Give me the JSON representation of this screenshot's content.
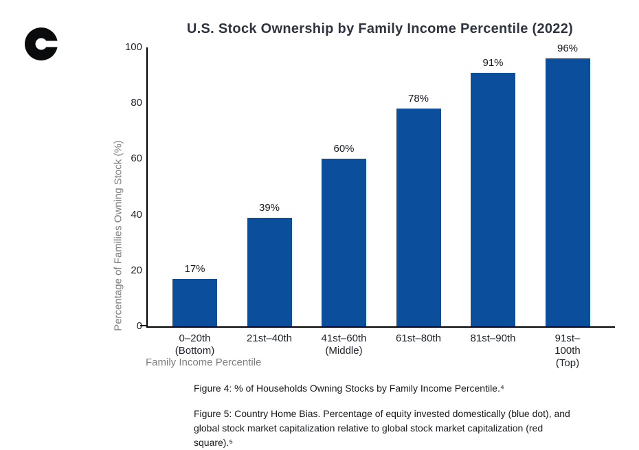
{
  "logo": {
    "name": "Coinbase",
    "color": "#0a0b0d"
  },
  "chart_data": {
    "type": "bar",
    "title": "U.S. Stock Ownership by Family Income Percentile (2022)",
    "categories": [
      "0–20th\n(Bottom)",
      "21st–40th",
      "41st–60th\n(Middle)",
      "61st–80th",
      "81st–90th",
      "91st–100th\n(Top)"
    ],
    "values": [
      17,
      39,
      60,
      78,
      91,
      96
    ],
    "value_labels": [
      "17%",
      "39%",
      "60%",
      "78%",
      "91%",
      "96%"
    ],
    "xlabel": "Family Income Percentile",
    "ylabel": "Percentage of Families Owning Stock (%)",
    "yticks": [
      0,
      20,
      40,
      60,
      80,
      100
    ],
    "ylim": [
      0,
      100
    ],
    "grid": false,
    "legend": "none",
    "bar_color": "#0b4e9c"
  },
  "captions": {
    "figure4": "Figure 4: % of Households Owning Stocks by Family Income Percentile.⁴",
    "figure5": "Figure 5: Country Home Bias. Percentage of equity invested domestically (blue dot), and\nglobal stock market capitalization relative to global stock market capitalization (red\nsquare).⁵"
  },
  "colors": {
    "bar": "#0b4e9c",
    "title": "#2e3440",
    "axis": "#000000",
    "tick_label": "#1d2129",
    "axis_label_gray": "#7d7d7d",
    "caption": "#16181c",
    "logo": "#0a0b0d"
  }
}
